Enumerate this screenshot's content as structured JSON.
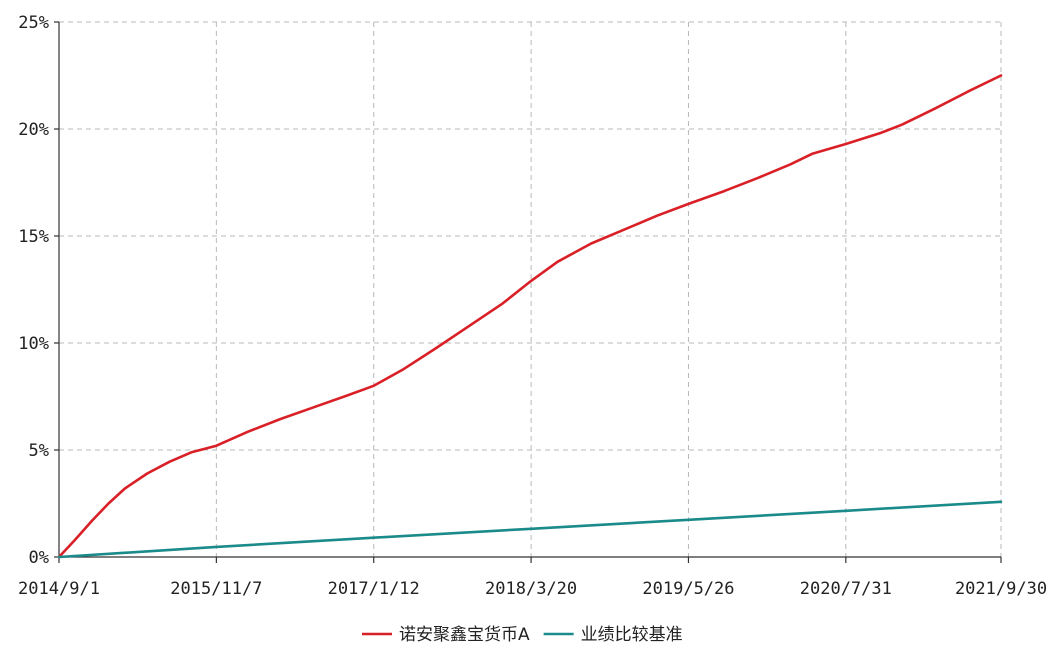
{
  "chart_data": {
    "type": "line",
    "title": "",
    "xlabel": "",
    "ylabel": "",
    "x_tick_labels": [
      "2014/9/1",
      "2015/11/7",
      "2017/1/12",
      "2018/3/20",
      "2019/5/26",
      "2020/7/31",
      "2021/9/30"
    ],
    "y_ticks": [
      0,
      5,
      10,
      15,
      20,
      25
    ],
    "y_tick_labels": [
      "0%",
      "5%",
      "10%",
      "15%",
      "20%",
      "25%"
    ],
    "ylim": [
      0,
      25
    ],
    "grid": true,
    "legend": "bottom-center",
    "series": [
      {
        "name": "诺安聚鑫宝货币A",
        "color": "#d92027",
        "points": [
          [
            "2014/9/1",
            0.0
          ],
          [
            "2014/10/15",
            0.8
          ],
          [
            "2014/12/1",
            1.7
          ],
          [
            "2015/1/15",
            2.5
          ],
          [
            "2015/3/1",
            3.2
          ],
          [
            "2015/5/1",
            3.9
          ],
          [
            "2015/7/1",
            4.45
          ],
          [
            "2015/9/1",
            4.9
          ],
          [
            "2015/11/7",
            5.2
          ],
          [
            "2016/2/1",
            5.85
          ],
          [
            "2016/5/1",
            6.45
          ],
          [
            "2016/8/1",
            7.0
          ],
          [
            "2016/11/1",
            7.55
          ],
          [
            "2017/1/12",
            8.0
          ],
          [
            "2017/4/1",
            8.75
          ],
          [
            "2017/7/1",
            9.75
          ],
          [
            "2017/10/1",
            10.8
          ],
          [
            "2018/1/1",
            11.85
          ],
          [
            "2018/3/20",
            12.9
          ],
          [
            "2018/6/1",
            13.8
          ],
          [
            "2018/9/1",
            14.65
          ],
          [
            "2018/12/1",
            15.3
          ],
          [
            "2019/3/1",
            15.95
          ],
          [
            "2019/5/26",
            16.5
          ],
          [
            "2019/9/1",
            17.1
          ],
          [
            "2019/12/1",
            17.7
          ],
          [
            "2020/3/1",
            18.35
          ],
          [
            "2020/5/1",
            18.85
          ],
          [
            "2020/7/31",
            19.3
          ],
          [
            "2020/11/1",
            19.8
          ],
          [
            "2021/1/1",
            20.2
          ],
          [
            "2021/4/1",
            20.95
          ],
          [
            "2021/7/1",
            21.75
          ],
          [
            "2021/9/30",
            22.5
          ]
        ]
      },
      {
        "name": "业绩比较基准",
        "color": "#1a8a8a",
        "points": [
          [
            "2014/9/1",
            0.0
          ],
          [
            "2015/11/7",
            0.47
          ],
          [
            "2017/1/12",
            0.9
          ],
          [
            "2018/3/20",
            1.32
          ],
          [
            "2019/5/26",
            1.74
          ],
          [
            "2020/7/31",
            2.16
          ],
          [
            "2021/9/30",
            2.58
          ]
        ]
      }
    ]
  }
}
